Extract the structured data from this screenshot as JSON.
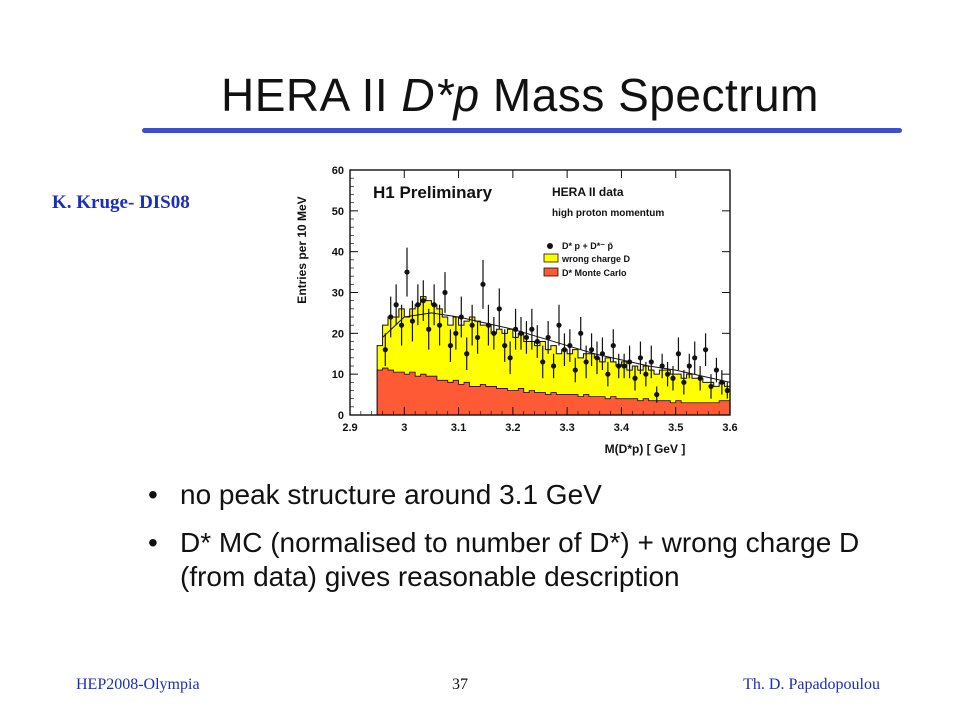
{
  "slide": {
    "title_part1": "HERA II ",
    "title_part2": "D*p",
    "title_part3": " Mass Spectrum",
    "credit": "K. Kruge- DIS08",
    "bullets": [
      "no peak structure around 3.1 GeV",
      "D* MC (normalised to number of D*) + wrong charge D (from data) gives reasonable description"
    ],
    "footer_left": "HEP2008-Olympia",
    "footer_center": "37",
    "footer_right": "Th. D. Papadopoulou"
  },
  "colors": {
    "accent": "#3a4fd6",
    "footer_text": "#1a2fb5",
    "wrong_charge_fill": "#ffff00",
    "mc_fill": "#ff5a36"
  },
  "chart_data": {
    "type": "histogram",
    "panel_label": "H1 Preliminary",
    "legend_title": "HERA II data",
    "legend_subtitle": "high proton momentum",
    "legend_entries": [
      "D* p + D*⁻ p̄",
      "wrong charge D",
      "D* Monte Carlo"
    ],
    "ylabel": "Entries per 10 MeV",
    "xlabel": "M(D*p) [ GeV ]",
    "xlim": [
      2.9,
      3.6
    ],
    "ylim": [
      0,
      60
    ],
    "x_ticks": [
      "2.9",
      "3",
      "3.1",
      "3.2",
      "3.3",
      "3.4",
      "3.5",
      "3.6"
    ],
    "y_ticks": [
      "0",
      "10",
      "20",
      "30",
      "40",
      "50",
      "60"
    ],
    "bin_edges": [
      2.95,
      2.96,
      2.97,
      2.98,
      2.99,
      3.0,
      3.01,
      3.02,
      3.03,
      3.04,
      3.05,
      3.06,
      3.07,
      3.08,
      3.09,
      3.1,
      3.11,
      3.12,
      3.13,
      3.14,
      3.15,
      3.16,
      3.17,
      3.18,
      3.19,
      3.2,
      3.21,
      3.22,
      3.23,
      3.24,
      3.25,
      3.26,
      3.27,
      3.28,
      3.29,
      3.3,
      3.31,
      3.32,
      3.33,
      3.34,
      3.35,
      3.36,
      3.37,
      3.38,
      3.39,
      3.4,
      3.41,
      3.42,
      3.43,
      3.44,
      3.45,
      3.46,
      3.47,
      3.48,
      3.49,
      3.5,
      3.51,
      3.52,
      3.53,
      3.54,
      3.55,
      3.56,
      3.57,
      3.58,
      3.59,
      3.6
    ],
    "mc_values": [
      11,
      11.5,
      11,
      10.5,
      10.5,
      10,
      10.5,
      9.5,
      10,
      9.5,
      9.5,
      8.5,
      8.5,
      8,
      8.5,
      7.5,
      8,
      7,
      7,
      7.5,
      7,
      7,
      6.5,
      6.5,
      6,
      6,
      6.5,
      5.5,
      6,
      5.5,
      5.5,
      5,
      5.5,
      5,
      5,
      5,
      5,
      4.5,
      5,
      4.5,
      4.5,
      4.5,
      4,
      4.5,
      4,
      4,
      4,
      4,
      3.5,
      4,
      3.5,
      3.5,
      3.5,
      3.5,
      3,
      3.5,
      3,
      3,
      3,
      3,
      3,
      3,
      3,
      3.5,
      3.5
    ],
    "total_values": [
      17,
      22,
      24,
      24,
      26,
      24,
      26,
      27,
      29,
      28,
      27,
      26,
      24,
      22,
      24,
      22,
      23,
      24,
      23,
      22,
      22,
      20,
      21,
      20,
      21,
      19,
      20,
      18,
      18,
      17,
      18,
      16,
      17,
      15,
      16,
      15,
      16,
      14,
      15,
      15,
      14,
      13,
      14,
      13,
      12,
      13,
      11,
      12,
      11,
      12,
      11,
      10,
      11,
      11,
      10,
      10,
      9,
      10,
      9,
      9,
      8,
      8,
      7,
      8,
      7
    ],
    "data_points": [
      {
        "x": 2.965,
        "y": 16,
        "err": 4
      },
      {
        "x": 2.975,
        "y": 24,
        "err": 5
      },
      {
        "x": 2.985,
        "y": 27,
        "err": 5
      },
      {
        "x": 2.995,
        "y": 22,
        "err": 5
      },
      {
        "x": 3.005,
        "y": 35,
        "err": 6
      },
      {
        "x": 3.015,
        "y": 23,
        "err": 5
      },
      {
        "x": 3.025,
        "y": 27,
        "err": 5
      },
      {
        "x": 3.035,
        "y": 28,
        "err": 5
      },
      {
        "x": 3.045,
        "y": 21,
        "err": 5
      },
      {
        "x": 3.055,
        "y": 27,
        "err": 5
      },
      {
        "x": 3.065,
        "y": 22,
        "err": 5
      },
      {
        "x": 3.075,
        "y": 30,
        "err": 5
      },
      {
        "x": 3.085,
        "y": 17,
        "err": 4
      },
      {
        "x": 3.095,
        "y": 20,
        "err": 4
      },
      {
        "x": 3.105,
        "y": 24,
        "err": 5
      },
      {
        "x": 3.115,
        "y": 15,
        "err": 4
      },
      {
        "x": 3.125,
        "y": 22,
        "err": 5
      },
      {
        "x": 3.135,
        "y": 19,
        "err": 4
      },
      {
        "x": 3.145,
        "y": 32,
        "err": 6
      },
      {
        "x": 3.155,
        "y": 22,
        "err": 5
      },
      {
        "x": 3.165,
        "y": 20,
        "err": 4
      },
      {
        "x": 3.175,
        "y": 26,
        "err": 5
      },
      {
        "x": 3.185,
        "y": 17,
        "err": 4
      },
      {
        "x": 3.195,
        "y": 14,
        "err": 4
      },
      {
        "x": 3.205,
        "y": 21,
        "err": 5
      },
      {
        "x": 3.215,
        "y": 20,
        "err": 4
      },
      {
        "x": 3.225,
        "y": 19,
        "err": 4
      },
      {
        "x": 3.235,
        "y": 21,
        "err": 5
      },
      {
        "x": 3.245,
        "y": 18,
        "err": 4
      },
      {
        "x": 3.255,
        "y": 13,
        "err": 4
      },
      {
        "x": 3.265,
        "y": 19,
        "err": 4
      },
      {
        "x": 3.275,
        "y": 12,
        "err": 3
      },
      {
        "x": 3.285,
        "y": 22,
        "err": 5
      },
      {
        "x": 3.295,
        "y": 16,
        "err": 4
      },
      {
        "x": 3.305,
        "y": 17,
        "err": 4
      },
      {
        "x": 3.315,
        "y": 11,
        "err": 3
      },
      {
        "x": 3.325,
        "y": 20,
        "err": 4
      },
      {
        "x": 3.335,
        "y": 13,
        "err": 4
      },
      {
        "x": 3.345,
        "y": 16,
        "err": 4
      },
      {
        "x": 3.355,
        "y": 14,
        "err": 4
      },
      {
        "x": 3.365,
        "y": 15,
        "err": 4
      },
      {
        "x": 3.375,
        "y": 10,
        "err": 3
      },
      {
        "x": 3.385,
        "y": 17,
        "err": 4
      },
      {
        "x": 3.395,
        "y": 12,
        "err": 3
      },
      {
        "x": 3.405,
        "y": 12,
        "err": 3
      },
      {
        "x": 3.415,
        "y": 13,
        "err": 4
      },
      {
        "x": 3.425,
        "y": 9,
        "err": 3
      },
      {
        "x": 3.435,
        "y": 14,
        "err": 4
      },
      {
        "x": 3.445,
        "y": 10,
        "err": 3
      },
      {
        "x": 3.455,
        "y": 13,
        "err": 4
      },
      {
        "x": 3.465,
        "y": 5,
        "err": 2
      },
      {
        "x": 3.475,
        "y": 12,
        "err": 3
      },
      {
        "x": 3.485,
        "y": 10,
        "err": 3
      },
      {
        "x": 3.495,
        "y": 9,
        "err": 3
      },
      {
        "x": 3.505,
        "y": 15,
        "err": 4
      },
      {
        "x": 3.515,
        "y": 8,
        "err": 3
      },
      {
        "x": 3.525,
        "y": 12,
        "err": 3
      },
      {
        "x": 3.535,
        "y": 14,
        "err": 4
      },
      {
        "x": 3.545,
        "y": 9,
        "err": 3
      },
      {
        "x": 3.555,
        "y": 16,
        "err": 4
      },
      {
        "x": 3.565,
        "y": 7,
        "err": 3
      },
      {
        "x": 3.575,
        "y": 11,
        "err": 3
      },
      {
        "x": 3.585,
        "y": 8,
        "err": 3
      },
      {
        "x": 3.595,
        "y": 6,
        "err": 2
      }
    ],
    "fit_curve": {
      "x": [
        2.96,
        3.0,
        3.05,
        3.1,
        3.15,
        3.2,
        3.25,
        3.3,
        3.35,
        3.4,
        3.45,
        3.5,
        3.55,
        3.6
      ],
      "y": [
        19,
        24,
        25,
        24,
        22.5,
        21,
        19,
        17,
        15,
        13.5,
        12,
        11,
        9.5,
        8
      ]
    }
  }
}
